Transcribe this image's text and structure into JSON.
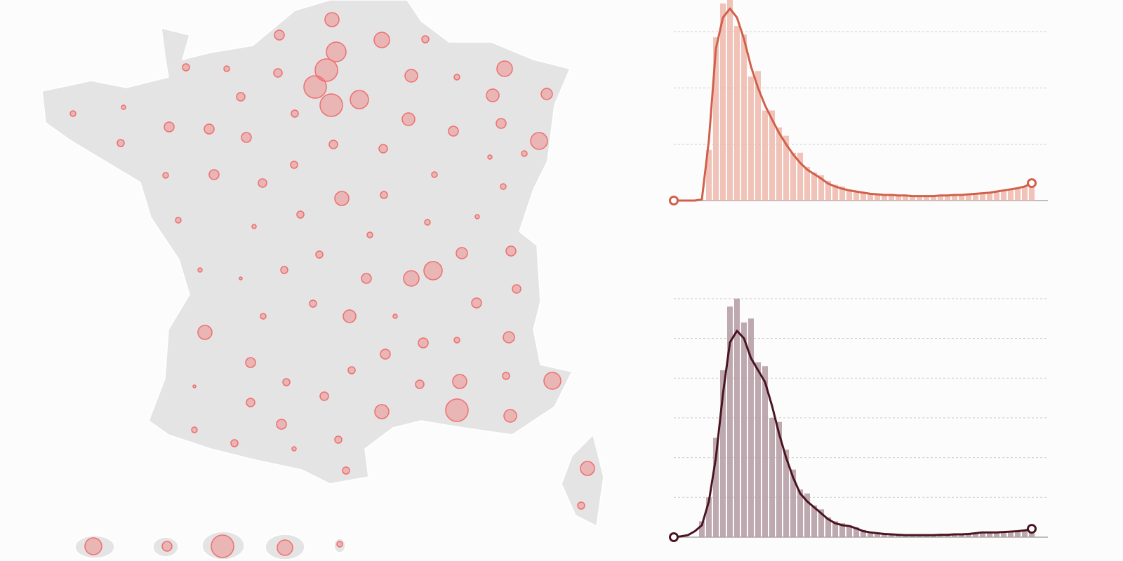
{
  "chart_data": [
    {
      "type": "bubble_map",
      "color": "#ef6f6f",
      "values": [
        10,
        7,
        11,
        5,
        14,
        16,
        16,
        16,
        13,
        6,
        4,
        5,
        9,
        4,
        11,
        9,
        8,
        6,
        3,
        4,
        5,
        7,
        7,
        7,
        6,
        9,
        6,
        7,
        7,
        12,
        4,
        3,
        5,
        4,
        7,
        6,
        5,
        4,
        4,
        10,
        5,
        4,
        3,
        5,
        4,
        4,
        3,
        8,
        7,
        5,
        5,
        2,
        3,
        13,
        11,
        7,
        6,
        5,
        4,
        9,
        3,
        7,
        10,
        7,
        4,
        8,
        7,
        7,
        5,
        5,
        12,
        10,
        6,
        5,
        2,
        6,
        6,
        10,
        16,
        9,
        7,
        4,
        5,
        5,
        3,
        5,
        10,
        5,
        12,
        7,
        16,
        11,
        4
      ]
    },
    {
      "type": "histogram",
      "color": "#d0604a",
      "bar_color": "#eeb7aa",
      "bins": [
        0,
        1,
        2,
        3,
        4,
        5,
        6,
        7,
        8,
        9,
        10,
        11,
        12,
        13,
        14,
        15,
        16,
        17,
        18,
        19,
        20,
        21,
        22,
        23,
        24,
        25,
        26,
        27,
        28,
        29,
        30,
        31,
        32,
        33,
        34,
        35,
        36,
        37,
        38,
        39,
        40,
        41,
        42,
        43,
        44,
        45,
        46,
        47,
        48,
        49,
        50,
        51,
        52
      ],
      "values": [
        0,
        0,
        0,
        0,
        0,
        0.9,
        2.9,
        3.5,
        3.6,
        3.1,
        2.95,
        2.2,
        2.3,
        1.6,
        1.6,
        1.3,
        1.15,
        0.85,
        0.85,
        0.6,
        0.5,
        0.45,
        0.35,
        0.28,
        0.25,
        0.2,
        0.17,
        0.15,
        0.12,
        0.12,
        0.1,
        0.1,
        0.09,
        0.09,
        0.08,
        0.08,
        0.07,
        0.08,
        0.08,
        0.09,
        0.1,
        0.1,
        0.11,
        0.12,
        0.12,
        0.14,
        0.15,
        0.17,
        0.19,
        0.22,
        0.25,
        0.32
      ],
      "curve": [
        0,
        0,
        0,
        0,
        0.02,
        1.07,
        2.7,
        3.25,
        3.41,
        3.25,
        2.87,
        2.38,
        2.0,
        1.69,
        1.44,
        1.2,
        1.0,
        0.82,
        0.67,
        0.55,
        0.47,
        0.39,
        0.3,
        0.25,
        0.21,
        0.18,
        0.16,
        0.14,
        0.12,
        0.11,
        0.1,
        0.1,
        0.09,
        0.09,
        0.08,
        0.08,
        0.08,
        0.08,
        0.09,
        0.09,
        0.1,
        0.1,
        0.11,
        0.12,
        0.13,
        0.14,
        0.16,
        0.18,
        0.2,
        0.22,
        0.25,
        0.31
      ],
      "xlim": [
        0,
        52
      ],
      "ylim": [
        0,
        3.5
      ],
      "yticks": [
        0,
        1,
        2,
        3
      ],
      "grid": true
    },
    {
      "type": "histogram",
      "color": "#4a1420",
      "bar_color": "#b49aa2",
      "bins": [
        0,
        1,
        2,
        3,
        4,
        5,
        6,
        7,
        8,
        9,
        10,
        11,
        12,
        13,
        14,
        15,
        16,
        17,
        18,
        19,
        20,
        21,
        22,
        23,
        24,
        25,
        26,
        27,
        28,
        29,
        30,
        31,
        32,
        33,
        34,
        35,
        36,
        37,
        38,
        39,
        40,
        41,
        42,
        43,
        44,
        45,
        46,
        47,
        48,
        49,
        50,
        51,
        52
      ],
      "values": [
        0,
        0,
        0,
        0,
        0.4,
        1.0,
        2.5,
        4.2,
        5.8,
        6.0,
        5.4,
        5.5,
        4.4,
        4.3,
        3.0,
        2.9,
        2.2,
        1.7,
        1.2,
        1.1,
        0.8,
        0.7,
        0.5,
        0.4,
        0.35,
        0.3,
        0.25,
        0.18,
        0.13,
        0.1,
        0.09,
        0.07,
        0.06,
        0.06,
        0.05,
        0.05,
        0.06,
        0.05,
        0.06,
        0.07,
        0.07,
        0.08,
        0.09,
        0.1,
        0.12,
        0.13,
        0.12,
        0.14,
        0.15,
        0.16,
        0.18,
        0.22
      ],
      "curve": [
        0,
        0.02,
        0.05,
        0.15,
        0.3,
        0.9,
        2.0,
        3.6,
        4.9,
        5.19,
        5.0,
        4.5,
        4.2,
        3.9,
        3.3,
        2.6,
        2.0,
        1.5,
        1.1,
        0.9,
        0.75,
        0.6,
        0.45,
        0.35,
        0.3,
        0.28,
        0.22,
        0.15,
        0.12,
        0.1,
        0.08,
        0.07,
        0.06,
        0.05,
        0.05,
        0.05,
        0.05,
        0.05,
        0.06,
        0.06,
        0.07,
        0.07,
        0.08,
        0.1,
        0.12,
        0.12,
        0.12,
        0.13,
        0.14,
        0.15,
        0.17,
        0.21
      ],
      "xlim": [
        0,
        52
      ],
      "ylim": [
        0,
        6.2
      ],
      "yticks": [
        0,
        1,
        2,
        3,
        4,
        5,
        6
      ],
      "grid": true
    }
  ]
}
